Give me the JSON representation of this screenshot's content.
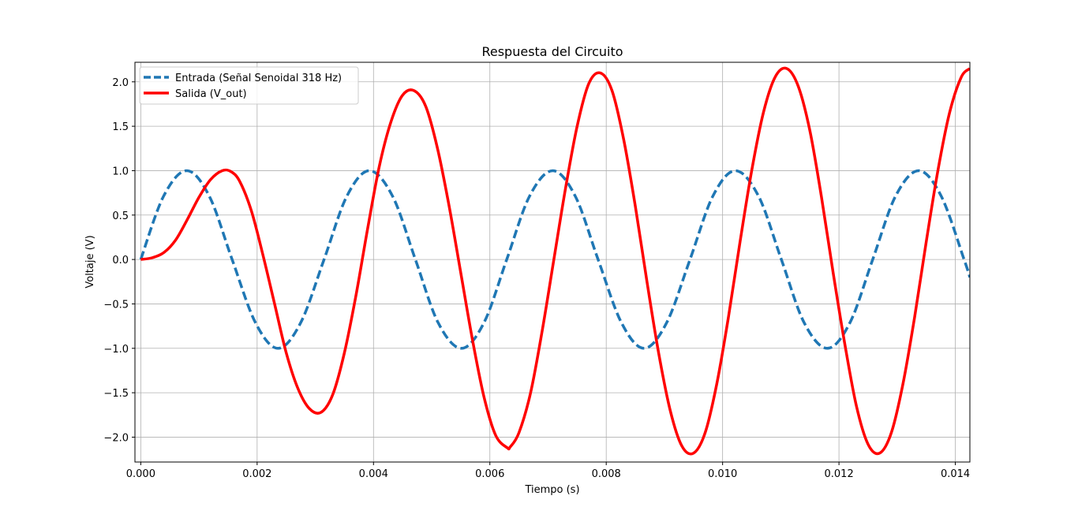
{
  "chart_data": {
    "type": "line",
    "title": "Respuesta del Circuito",
    "xlabel": "Tiempo (s)",
    "ylabel": "Voltaje (V)",
    "xlim": [
      -0.0001,
      0.01425
    ],
    "ylim": [
      -2.28,
      2.22
    ],
    "grid": true,
    "legend_position": "top-left",
    "x_ticks": [
      0.0,
      0.002,
      0.004,
      0.006,
      0.008,
      0.01,
      0.012,
      0.014
    ],
    "x_tick_labels": [
      "0.000",
      "0.002",
      "0.004",
      "0.006",
      "0.008",
      "0.010",
      "0.012",
      "0.014"
    ],
    "y_ticks": [
      -2.0,
      -1.5,
      -1.0,
      -0.5,
      0.0,
      0.5,
      1.0,
      1.5,
      2.0
    ],
    "y_tick_labels": [
      "−2.0",
      "−1.5",
      "−1.0",
      "−0.5",
      "0.0",
      "0.5",
      "1.0",
      "1.5",
      "2.0"
    ],
    "series": [
      {
        "name": "Entrada (Señal Senoidal 318 Hz)",
        "color": "#1f77b4",
        "style": "dashed",
        "x": [
          0.0,
          0.00039,
          0.00079,
          0.00118,
          0.00157,
          0.00197,
          0.00236,
          0.00275,
          0.00315,
          0.00354,
          0.00393,
          0.00433,
          0.00472,
          0.00511,
          0.00551,
          0.0059,
          0.00629,
          0.00668,
          0.00708,
          0.00747,
          0.00786,
          0.00826,
          0.00865,
          0.00904,
          0.00944,
          0.00983,
          0.01022,
          0.01062,
          0.01101,
          0.0114,
          0.0118,
          0.01219,
          0.01258,
          0.01297,
          0.01337,
          0.01376,
          0.01415,
          0.01425
        ],
        "values": [
          0.0,
          0.71,
          1.0,
          0.71,
          0.0,
          -0.71,
          -1.0,
          -0.71,
          0.0,
          0.71,
          1.0,
          0.71,
          0.0,
          -0.71,
          -1.0,
          -0.71,
          0.0,
          0.71,
          1.0,
          0.71,
          0.0,
          -0.71,
          -1.0,
          -0.71,
          0.0,
          0.71,
          1.0,
          0.71,
          0.0,
          -0.71,
          -1.0,
          -0.71,
          0.0,
          0.71,
          1.0,
          0.71,
          0.0,
          -0.2
        ]
      },
      {
        "name": "Salida (V_out)",
        "color": "#ff0000",
        "style": "solid",
        "x": [
          0.0,
          0.0002,
          0.0004,
          0.0006,
          0.0008,
          0.001,
          0.0012,
          0.0014,
          0.00155,
          0.0017,
          0.0019,
          0.0021,
          0.0023,
          0.0025,
          0.0027,
          0.0029,
          0.0031,
          0.0033,
          0.0035,
          0.0037,
          0.0039,
          0.0041,
          0.0043,
          0.0045,
          0.0047,
          0.0049,
          0.0051,
          0.0053,
          0.0055,
          0.0057,
          0.0059,
          0.0061,
          0.0063,
          0.00635,
          0.0065,
          0.0067,
          0.0069,
          0.0071,
          0.0073,
          0.0075,
          0.0077,
          0.0079,
          0.0081,
          0.0083,
          0.0085,
          0.0087,
          0.0089,
          0.0091,
          0.0093,
          0.0095,
          0.0097,
          0.0099,
          0.0101,
          0.0103,
          0.0105,
          0.0107,
          0.0109,
          0.0111,
          0.0113,
          0.0115,
          0.0117,
          0.0119,
          0.0121,
          0.0123,
          0.0125,
          0.0127,
          0.0129,
          0.0131,
          0.0133,
          0.0135,
          0.0137,
          0.0139,
          0.0141,
          0.01425
        ],
        "values": [
          0.0,
          0.02,
          0.08,
          0.22,
          0.45,
          0.7,
          0.9,
          1.0,
          0.99,
          0.88,
          0.55,
          0.05,
          -0.5,
          -1.05,
          -1.45,
          -1.68,
          -1.72,
          -1.52,
          -1.05,
          -0.4,
          0.35,
          1.05,
          1.55,
          1.85,
          1.9,
          1.72,
          1.25,
          0.6,
          -0.15,
          -0.9,
          -1.55,
          -1.98,
          -2.12,
          -2.11,
          -1.95,
          -1.5,
          -0.8,
          0.0,
          0.8,
          1.5,
          1.98,
          2.1,
          1.9,
          1.35,
          0.6,
          -0.25,
          -1.05,
          -1.7,
          -2.1,
          -2.18,
          -1.95,
          -1.4,
          -0.65,
          0.2,
          1.0,
          1.65,
          2.05,
          2.15,
          1.95,
          1.45,
          0.7,
          -0.15,
          -0.95,
          -1.65,
          -2.08,
          -2.18,
          -1.95,
          -1.4,
          -0.65,
          0.2,
          1.0,
          1.65,
          2.05,
          2.15
        ]
      }
    ]
  }
}
